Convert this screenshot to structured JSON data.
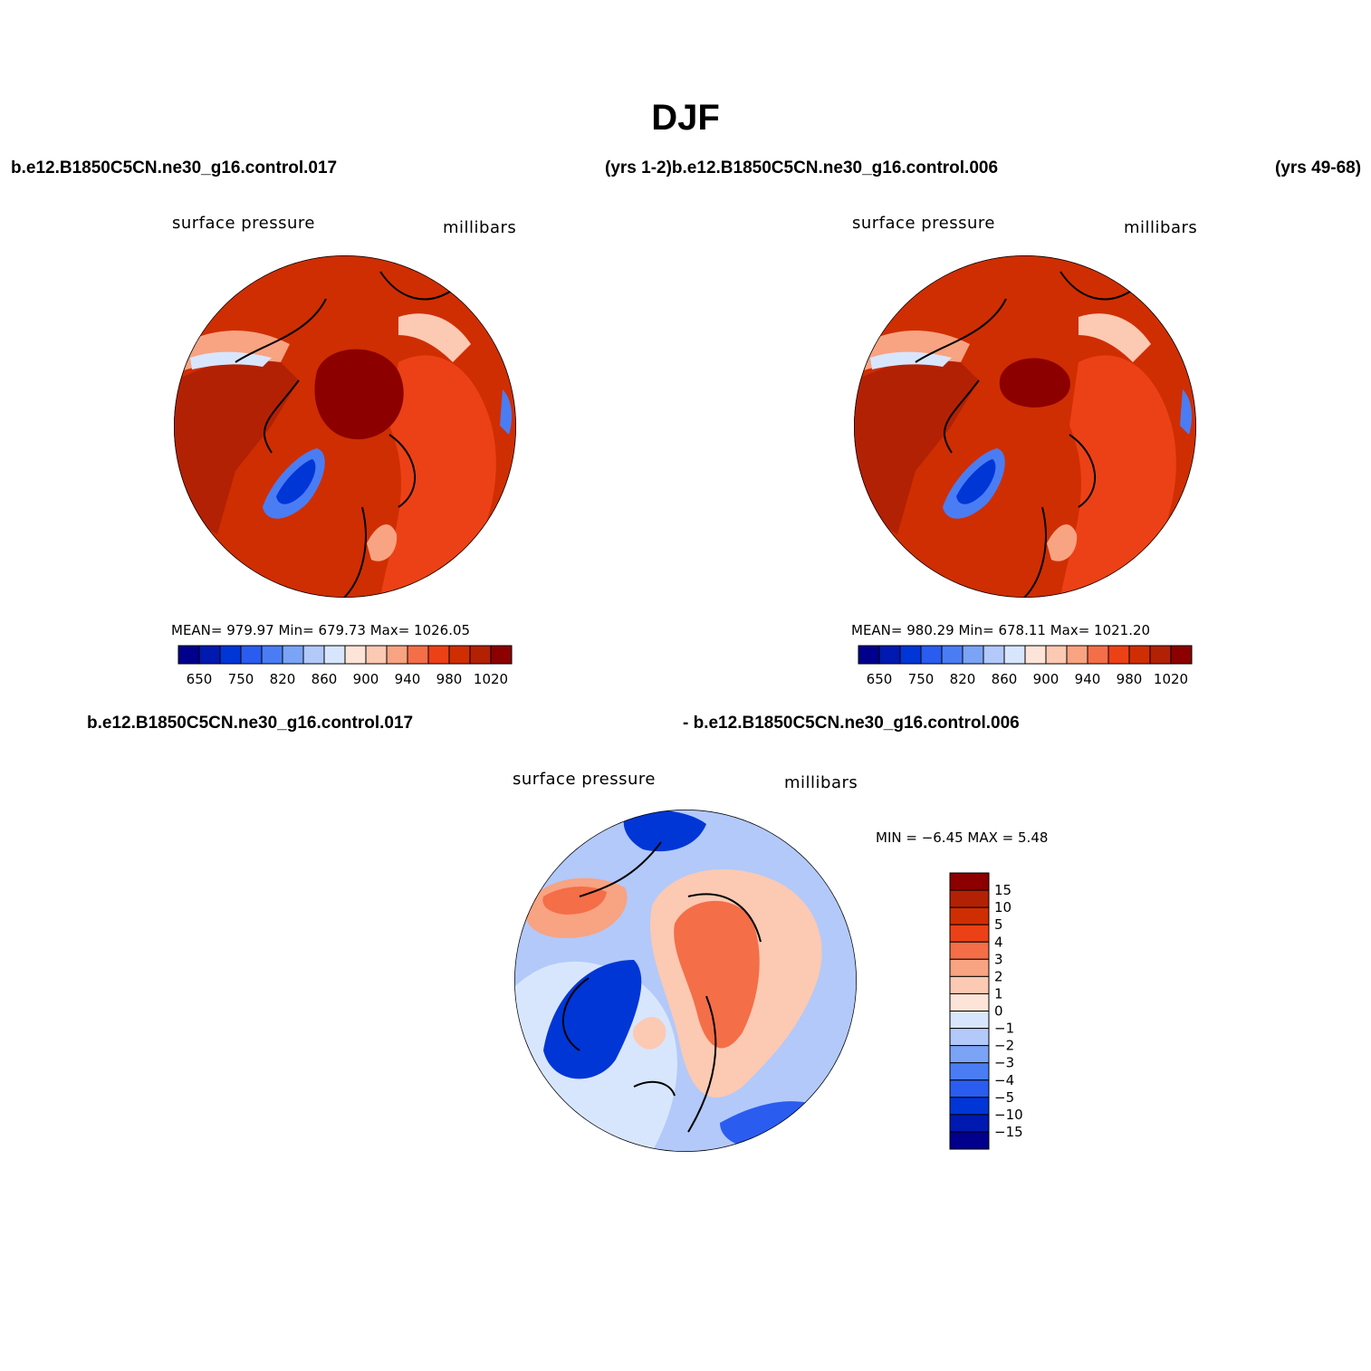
{
  "title": "DJF",
  "top_left_case": "b.e12.B1850C5CN.ne30_g16.control.017",
  "top_center_label": "(yrs 1-2)b.e12.B1850C5CN.ne30_g16.control.006",
  "top_right_label": "(yrs 49-68)",
  "diff_case_left": "b.e12.B1850C5CN.ne30_g16.control.017",
  "diff_case_right": "- b.e12.B1850C5CN.ne30_g16.control.006",
  "panels": [
    {
      "variable": "surface pressure",
      "units": "millibars",
      "stats_text": "MEAN= 979.97   Min= 679.73   Max= 1026.05"
    },
    {
      "variable": "surface pressure",
      "units": "millibars",
      "stats_text": "MEAN= 980.29   Min= 678.11   Max= 1021.20"
    },
    {
      "variable": "surface pressure",
      "units": "millibars",
      "stats_text": "MIN =   −6.45  MAX =    5.48"
    }
  ],
  "colorbar_abs": {
    "colors": [
      "#00008c",
      "#0019b0",
      "#0036d6",
      "#2a5cf0",
      "#4a7df4",
      "#7ba3f6",
      "#b2c9fa",
      "#d8e6fd",
      "#fde4d8",
      "#fcc9b3",
      "#f8a382",
      "#f46e48",
      "#ec4116",
      "#cf2e02",
      "#b32104",
      "#8c0000"
    ],
    "labels": [
      "650",
      "750",
      "820",
      "860",
      "900",
      "940",
      "980",
      "1020"
    ]
  },
  "colorbar_diff": {
    "colors": [
      "#8c0000",
      "#b32104",
      "#cf2e02",
      "#ec4116",
      "#f46e48",
      "#f8a382",
      "#fcc9b3",
      "#fde4d8",
      "#d8e6fd",
      "#b2c9fa",
      "#7ba3f6",
      "#4a7df4",
      "#2a5cf0",
      "#0036d6",
      "#0019b0",
      "#00008c"
    ],
    "labels": [
      "15",
      "10",
      "5",
      "4",
      "3",
      "2",
      "1",
      "0",
      "−1",
      "−2",
      "−3",
      "−4",
      "−5",
      "−10",
      "−15"
    ]
  },
  "map_colors": {
    "deep_red": "#8c0000",
    "red": "#b32104",
    "orange": "#ec4116",
    "light": "#fcc9b3",
    "blue": "#0036d6",
    "light_blue": "#d8e6fd"
  }
}
